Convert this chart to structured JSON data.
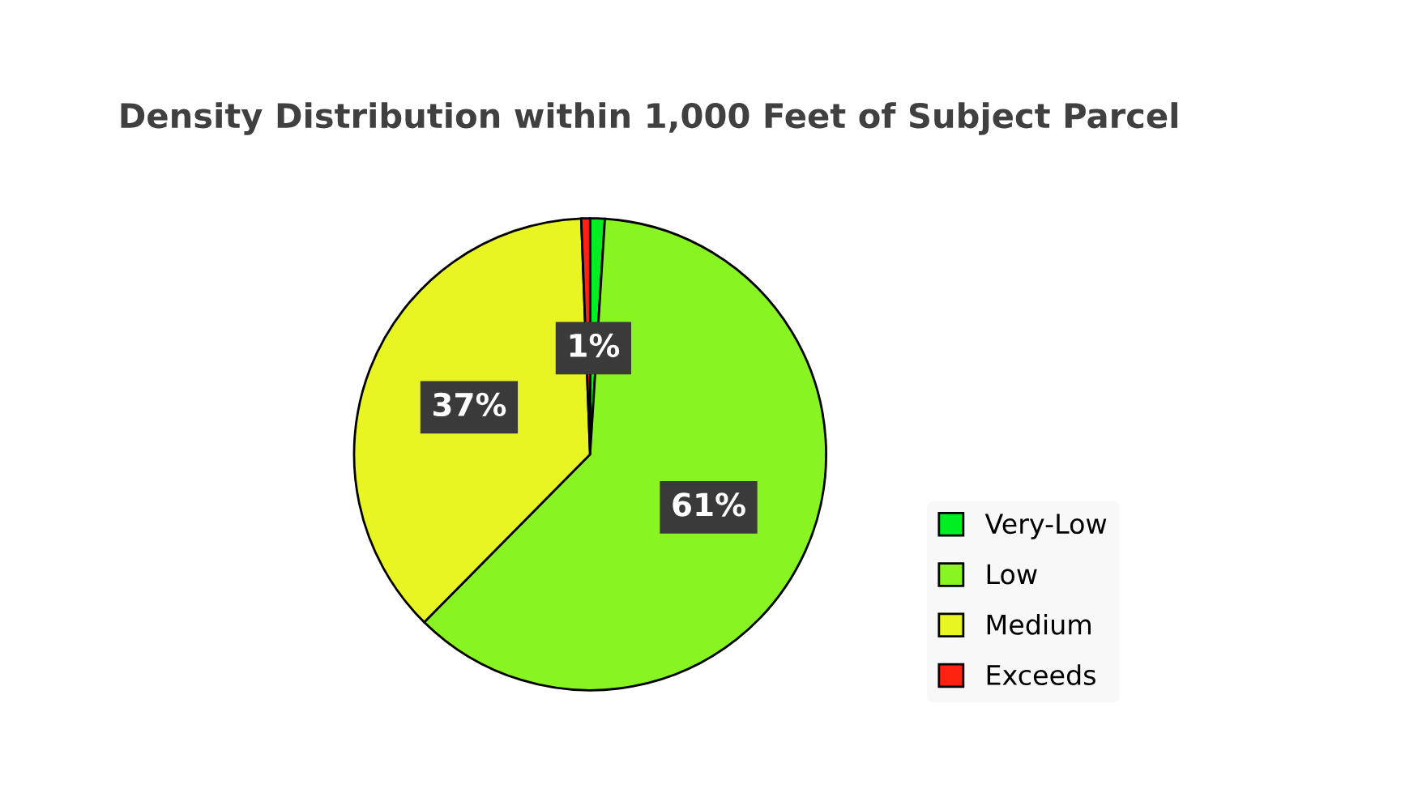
{
  "chart_data": {
    "type": "pie",
    "title": "Density Distribution within 1,000 Feet of Subject Parcel",
    "categories": [
      "Very-Low",
      "Low",
      "Medium",
      "Exceeds"
    ],
    "values": [
      1,
      61.4,
      37,
      0.6
    ],
    "colors": [
      "#00ee22",
      "#88f522",
      "#e8f522",
      "#ff2211"
    ],
    "value_labels": [
      "1%",
      "61%",
      "37%",
      null
    ],
    "legend": "right"
  }
}
